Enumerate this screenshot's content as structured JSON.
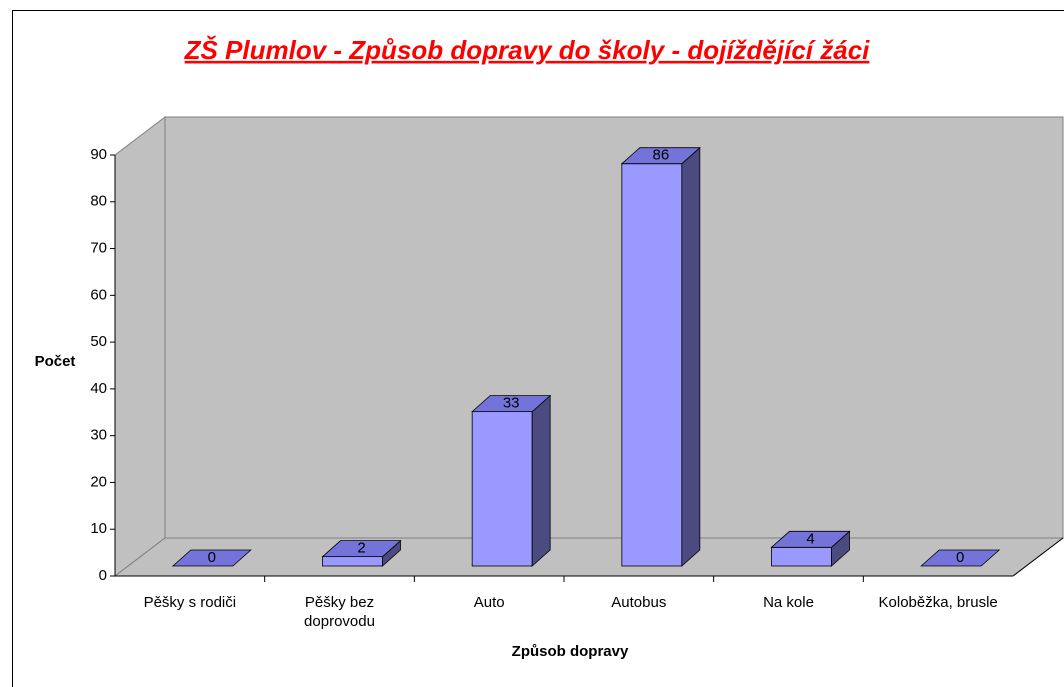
{
  "chart_data": {
    "type": "bar3d",
    "title": "ZŠ Plumlov - Způsob dopravy do školy - dojíždějící žáci",
    "categories": [
      "Pěšky s rodiči",
      "Pěšky bez doprovodu",
      "Auto",
      "Autobus",
      "Na kole",
      "Koloběžka, brusle"
    ],
    "values": [
      0,
      2,
      33,
      86,
      4,
      0
    ],
    "color": "#9999ff",
    "ylim": [
      0,
      90
    ],
    "yticks": [
      0,
      10,
      20,
      30,
      40,
      50,
      60,
      70,
      80,
      90
    ],
    "ylabel": "Počet",
    "xlabel": "Způsob dopravy"
  }
}
